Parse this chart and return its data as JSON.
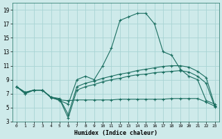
{
  "xlabel": "Humidex (Indice chaleur)",
  "bg_color": "#ceeaea",
  "grid_color": "#a8d4d4",
  "line_color": "#1a6e60",
  "x_ticks": [
    0,
    1,
    2,
    3,
    4,
    5,
    6,
    7,
    8,
    9,
    10,
    11,
    12,
    13,
    14,
    15,
    16,
    17,
    18,
    19,
    20,
    21,
    22,
    23
  ],
  "y_ticks": [
    3,
    5,
    7,
    9,
    11,
    13,
    15,
    17,
    19
  ],
  "xlim": [
    -0.5,
    23.5
  ],
  "ylim": [
    3,
    20
  ],
  "line1_y": [
    8.0,
    7.0,
    7.5,
    7.5,
    6.5,
    6.0,
    5.5,
    9.0,
    9.5,
    9.0,
    11.0,
    13.5,
    17.5,
    18.0,
    18.5,
    18.5,
    17.0,
    13.0,
    12.5,
    10.5,
    9.5,
    9.0,
    6.0,
    5.5
  ],
  "line2_y": [
    8.0,
    7.0,
    7.5,
    7.5,
    6.5,
    6.3,
    4.0,
    8.0,
    8.5,
    8.8,
    9.2,
    9.5,
    9.8,
    10.0,
    10.3,
    10.5,
    10.7,
    10.9,
    11.0,
    11.0,
    10.8,
    10.2,
    9.3,
    5.3
  ],
  "line3_y": [
    8.0,
    7.2,
    7.5,
    7.5,
    6.5,
    6.2,
    3.5,
    7.5,
    8.0,
    8.3,
    8.7,
    9.0,
    9.2,
    9.5,
    9.7,
    9.8,
    10.0,
    10.1,
    10.2,
    10.3,
    10.1,
    9.5,
    8.5,
    5.1
  ],
  "line4_y": [
    8.0,
    7.2,
    7.5,
    7.5,
    6.4,
    6.1,
    6.0,
    6.1,
    6.1,
    6.1,
    6.1,
    6.1,
    6.2,
    6.2,
    6.2,
    6.2,
    6.2,
    6.2,
    6.3,
    6.3,
    6.3,
    6.3,
    5.8,
    5.2
  ]
}
